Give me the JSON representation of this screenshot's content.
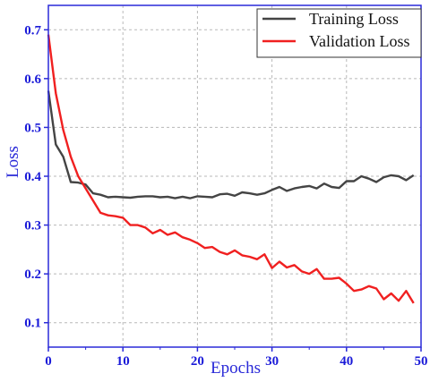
{
  "colors": {
    "axis": "#2a2ad8",
    "tick_label": "#1a1ad8",
    "grid": "#b8b8b8",
    "training": "#444444",
    "validation": "#f02020"
  },
  "chart_data": {
    "type": "line",
    "title": "",
    "xlabel": "Epochs",
    "ylabel": "Loss",
    "xlim": [
      0,
      50
    ],
    "ylim": [
      0.05,
      0.75
    ],
    "xticks": [
      0,
      10,
      20,
      30,
      40,
      50
    ],
    "yticks": [
      0.1,
      0.2,
      0.3,
      0.4,
      0.5,
      0.6,
      0.7
    ],
    "grid": true,
    "legend_position": "top-right",
    "x": [
      0,
      1,
      2,
      3,
      4,
      5,
      6,
      7,
      8,
      9,
      10,
      11,
      12,
      13,
      14,
      15,
      16,
      17,
      18,
      19,
      20,
      21,
      22,
      23,
      24,
      25,
      26,
      27,
      28,
      29,
      30,
      31,
      32,
      33,
      34,
      35,
      36,
      37,
      38,
      39,
      40,
      41,
      42,
      43,
      44,
      45,
      46,
      47,
      48,
      49
    ],
    "series": [
      {
        "name": "Training Loss",
        "color": "#444444",
        "values": [
          0.575,
          0.465,
          0.44,
          0.388,
          0.387,
          0.383,
          0.365,
          0.362,
          0.357,
          0.358,
          0.357,
          0.356,
          0.358,
          0.359,
          0.359,
          0.357,
          0.358,
          0.355,
          0.358,
          0.355,
          0.359,
          0.358,
          0.357,
          0.363,
          0.364,
          0.36,
          0.367,
          0.365,
          0.362,
          0.365,
          0.372,
          0.378,
          0.37,
          0.375,
          0.378,
          0.38,
          0.375,
          0.385,
          0.378,
          0.376,
          0.39,
          0.39,
          0.4,
          0.395,
          0.388,
          0.398,
          0.402,
          0.4,
          0.392,
          0.402
        ]
      },
      {
        "name": "Validation Loss",
        "color": "#f02020",
        "values": [
          0.69,
          0.57,
          0.495,
          0.44,
          0.4,
          0.375,
          0.35,
          0.325,
          0.32,
          0.318,
          0.315,
          0.3,
          0.3,
          0.295,
          0.283,
          0.29,
          0.28,
          0.285,
          0.275,
          0.27,
          0.263,
          0.253,
          0.255,
          0.245,
          0.24,
          0.248,
          0.238,
          0.235,
          0.23,
          0.24,
          0.212,
          0.225,
          0.213,
          0.218,
          0.205,
          0.2,
          0.21,
          0.19,
          0.19,
          0.192,
          0.18,
          0.165,
          0.168,
          0.175,
          0.17,
          0.148,
          0.16,
          0.145,
          0.165,
          0.14
        ]
      }
    ]
  }
}
